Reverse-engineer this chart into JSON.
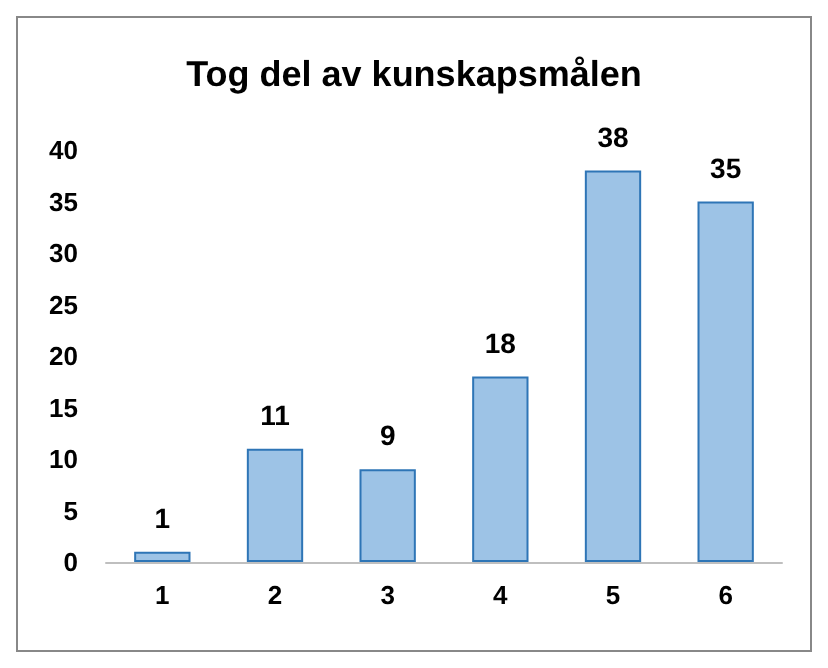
{
  "chart_data": {
    "type": "bar",
    "title": "Tog del av kunskapsmålen",
    "categories": [
      "1",
      "2",
      "3",
      "4",
      "5",
      "6"
    ],
    "values": [
      1,
      11,
      9,
      18,
      38,
      35
    ],
    "color": "#9dc3e6",
    "ylim": [
      0,
      40
    ],
    "yticks": [
      0,
      5,
      10,
      15,
      20,
      25,
      30,
      35,
      40
    ],
    "data_labels": true,
    "grid": false
  }
}
